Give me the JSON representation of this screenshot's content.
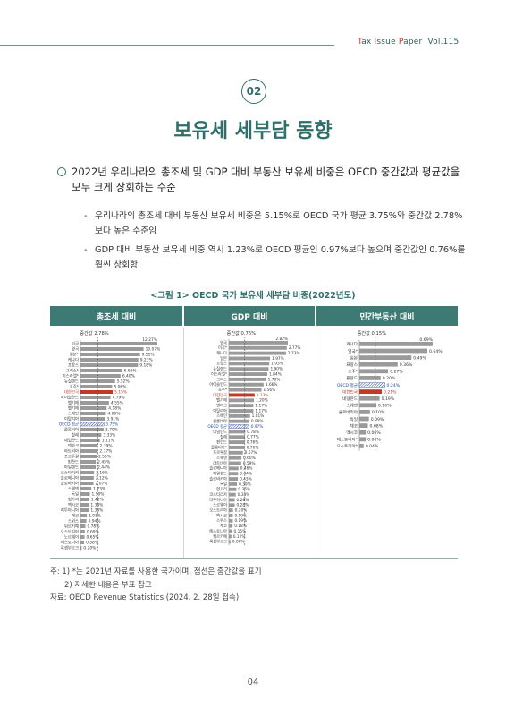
{
  "header": {
    "brand_t": "T",
    "brand_ax": "ax ",
    "brand_i": "I",
    "brand_ssue": "ssue ",
    "brand_p": "P",
    "brand_aper": "aper",
    "volume": "Vol.115"
  },
  "section_number": "02",
  "section_title": "보유세 세부담 동향",
  "bullet": "2022년 우리나라의 총조세 및 GDP 대비 부동산 보유세 비중은 OECD 중간값과 평균값을 모두 크게 상회하는 수준",
  "sub_bullets": [
    "우리나라의 총조세 대비 부동산 보유세 비중은 5.15%로 OECD 국가 평균 3.75%와 중간값 2.78% 보다 높은 수준임",
    "GDP 대비 부동산 보유세 비중 역시 1.23%로 OECD 평균인 0.97%보다 높으며 중간값인 0.76%를 훨씬 상회함"
  ],
  "figure_title": "<그림 1> OECD 국가 보유세 세부담 비중(2022년도)",
  "panel_headers": [
    "총조세 대비",
    "GDP 대비",
    "민간부동산 대비"
  ],
  "colors": {
    "accent": "#3d7a74",
    "korea": "#c0392b",
    "oecd_avg": "#2a4a9a",
    "bar": "#9a9a9a"
  },
  "chart_data": [
    {
      "type": "bar",
      "orientation": "horizontal",
      "title": "총조세 대비",
      "median_label": "중간값 2.78%",
      "median": 2.78,
      "xlim": [
        0,
        12.27
      ],
      "categories": [
        "미국",
        "영국",
        "일본*",
        "캐나다",
        "프랑스",
        "그리스*",
        "이스라엘*",
        "뉴질랜드",
        "호주*",
        "대한민국",
        "아이슬란드",
        "벨기에",
        "벨기에",
        "스페인",
        "이탈리아",
        "OECD 평균",
        "콜롬비아",
        "칠레",
        "네덜란드",
        "덴마크",
        "라트비아",
        "포르투갈",
        "핀란드",
        "아일랜드",
        "코스타리카",
        "슬로베니아",
        "슬로바키아",
        "스웨덴",
        "독일",
        "헝가리",
        "멕시코",
        "리투아니아",
        "체코",
        "스위스",
        "튀르키예",
        "오스트리아",
        "노르웨이",
        "에스토니아",
        "룩셈부르크"
      ],
      "values": [
        12.27,
        10.07,
        9.51,
        9.23,
        9.18,
        6.66,
        6.4,
        5.52,
        5.06,
        5.15,
        4.79,
        4.55,
        4.18,
        4.06,
        3.91,
        3.75,
        3.7,
        3.33,
        3.11,
        2.79,
        2.77,
        2.56,
        2.45,
        2.44,
        2.16,
        2.12,
        2.07,
        1.73,
        1.5,
        1.4,
        1.34,
        1.33,
        1.01,
        0.94,
        0.78,
        0.69,
        0.65,
        0.58,
        0.2
      ],
      "labels": [
        "12.27%",
        "10.07%",
        "9.51%",
        "9.23%",
        "9.18%",
        "6.66%",
        "6.40%",
        "5.52%",
        "5.06%",
        "5.15%",
        "4.79%",
        "4.55%",
        "4.18%",
        "4.06%",
        "3.91%",
        "3.75%",
        "3.70%",
        "3.33%",
        "3.11%",
        "2.79%",
        "2.77%",
        "2.56%",
        "2.45%",
        "2.44%",
        "2.16%",
        "2.12%",
        "2.07%",
        "1.73%",
        "1.50%",
        "1.40%",
        "1.34%",
        "1.33%",
        "1.01%",
        "0.94%",
        "0.78%",
        "0.69%",
        "0.65%",
        "0.58%",
        "0.20%"
      ],
      "highlight": {
        "korea": 9,
        "oecd": 15
      }
    },
    {
      "type": "bar",
      "orientation": "horizontal",
      "title": "GDP 대비",
      "median_label": "중간값 0.76%",
      "median": 0.76,
      "xlim": [
        0,
        2.82
      ],
      "categories": [
        "영국",
        "미국*",
        "캐나다",
        "일본",
        "프랑스",
        "뉴질랜드",
        "이스라엘*",
        "그리스",
        "아이슬란드",
        "호주*",
        "대한민국",
        "벨기에",
        "덴마크",
        "이탈리아",
        "스페인",
        "콜롬비아",
        "OECD 평균",
        "네덜란드",
        "칠레",
        "핀란드",
        "콜롬비아*",
        "포르투갈",
        "스웨덴",
        "라트비아",
        "슬로베니아",
        "아일랜드",
        "슬로바키아",
        "독일",
        "헝가리",
        "코스타리카",
        "리투아니아",
        "노르웨이",
        "오스트리아",
        "멕시코",
        "스위스",
        "체코",
        "에스토니아",
        "튀르키예",
        "룩셈부르크"
      ],
      "values": [
        2.82,
        2.77,
        2.73,
        1.97,
        1.93,
        1.9,
        1.84,
        1.78,
        1.66,
        1.56,
        1.23,
        1.2,
        1.17,
        1.17,
        1.01,
        0.98,
        0.97,
        0.78,
        0.77,
        0.76,
        0.76,
        0.67,
        0.6,
        0.59,
        0.46,
        0.44,
        0.43,
        0.39,
        0.36,
        0.33,
        0.28,
        0.28,
        0.2,
        0.19,
        0.19,
        0.18,
        0.15,
        0.12,
        0.08
      ],
      "labels": [
        "2.82%",
        "2.77%",
        "2.73%",
        "1.97%",
        "1.93%",
        "1.90%",
        "1.84%",
        "1.78%",
        "1.66%",
        "1.56%",
        "1.23%",
        "1.20%",
        "1.17%",
        "1.17%",
        "1.01%",
        "0.98%",
        "0.97%",
        "0.78%",
        "0.77%",
        "0.76%",
        "0.76%",
        "0.67%",
        "0.60%",
        "0.59%",
        "0.46%",
        "0.44%",
        "0.43%",
        "0.39%",
        "0.36%",
        "0.33%",
        "0.28%",
        "0.28%",
        "0.20%",
        "0.19%",
        "0.19%",
        "0.18%",
        "0.15%",
        "0.12%",
        "0.08%"
      ],
      "highlight": {
        "korea": 10,
        "oecd": 16
      }
    },
    {
      "type": "bar",
      "orientation": "horizontal",
      "title": "민간부동산 대비",
      "median_label": "중간값 0.15%",
      "median": 0.15,
      "xlim": [
        0,
        0.69
      ],
      "categories": [
        "캐나다",
        "영국*",
        "일본",
        "프랑스",
        "호주*",
        "핀란드",
        "OECD 평균",
        "대한민국",
        "네덜란드",
        "스웨덴",
        "슬로바키아",
        "독일",
        "체코",
        "멕시코",
        "에스토니아*",
        "오스트리아*"
      ],
      "values": [
        0.69,
        0.64,
        0.49,
        0.36,
        0.27,
        0.2,
        0.24,
        0.21,
        0.19,
        0.16,
        0.1,
        0.09,
        0.08,
        0.06,
        0.06,
        0.04
      ],
      "labels": [
        "0.69%",
        "0.64%",
        "0.49%",
        "0.36%",
        "0.27%",
        "0.20%",
        "0.24%",
        "0.21%",
        "0.19%",
        "0.16%",
        "0.10%",
        "0.09%",
        "0.08%",
        "0.06%",
        "0.06%",
        "0.04%"
      ],
      "highlight": {
        "korea": 7,
        "oecd": 6
      }
    }
  ],
  "notes": [
    "주: 1) *는 2021년 자료를 사용한 국가이며, 점선은 중간값을 표기",
    "2) 자세한 내용은 부표 참고",
    "자료: OECD Revenue Statistics (2024. 2. 28일 접속)"
  ],
  "page_number": "04"
}
